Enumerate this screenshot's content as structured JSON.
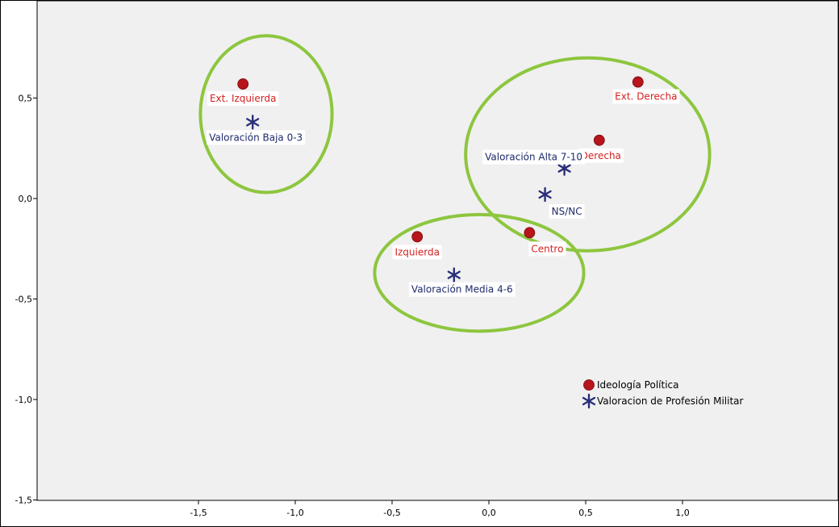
{
  "chart_data": {
    "type": "scatter",
    "title": "",
    "xlabel": "",
    "ylabel": "",
    "xlim": [
      -2.05,
      2.35
    ],
    "ylim": [
      -1.52,
      1.0
    ],
    "grid": false,
    "x_ticks": [
      {
        "value": -1.5,
        "label": "-1,5"
      },
      {
        "value": -1.0,
        "label": "-1,0"
      },
      {
        "value": -0.5,
        "label": "-0,5"
      },
      {
        "value": 0.0,
        "label": "0,0"
      },
      {
        "value": 0.5,
        "label": "0,5"
      },
      {
        "value": 1.0,
        "label": "1,0"
      }
    ],
    "y_ticks": [
      {
        "value": 0.5,
        "label": "0,5"
      },
      {
        "value": 0.0,
        "label": "0,0"
      },
      {
        "value": -0.5,
        "label": "-0,5"
      },
      {
        "value": -1.0,
        "label": "-1,0"
      },
      {
        "value": -1.5,
        "label": "-1,5"
      }
    ],
    "series": [
      {
        "name": "Ideología Política",
        "marker": "circle",
        "color": "#b8141b",
        "label_color": "#d42020",
        "points": [
          {
            "label": "Ext. Izquierda",
            "x": -1.27,
            "y": 0.57
          },
          {
            "label": "Ext. Derecha",
            "x": 0.77,
            "y": 0.58
          },
          {
            "label": "Derecha",
            "x": 0.57,
            "y": 0.29
          },
          {
            "label": "Izquierda",
            "x": -0.37,
            "y": -0.19
          },
          {
            "label": "Centro",
            "x": 0.21,
            "y": -0.17
          }
        ]
      },
      {
        "name": "Valoracion de Profesión Militar",
        "marker": "star",
        "color": "#2a2f7a",
        "label_color": "#1e2a6a",
        "points": [
          {
            "label": "Valoración Baja 0-3",
            "x": -1.22,
            "y": 0.38
          },
          {
            "label": "Valoración Alta 7-10",
            "x": 0.39,
            "y": 0.15
          },
          {
            "label": "NS/NC",
            "x": 0.29,
            "y": 0.02
          },
          {
            "label": "Valoración Media 4-6",
            "x": -0.18,
            "y": -0.38
          }
        ]
      }
    ],
    "annotations": [
      {
        "shape": "ellipse",
        "color": "#8dc63f",
        "center": [
          -1.15,
          0.42
        ],
        "radius": [
          0.34,
          0.39
        ],
        "encloses": [
          "Ext. Izquierda",
          "Valoración Baja 0-3"
        ]
      },
      {
        "shape": "ellipse",
        "color": "#8dc63f",
        "center": [
          0.51,
          0.22
        ],
        "radius": [
          0.63,
          0.48
        ],
        "encloses": [
          "Ext. Derecha",
          "Derecha",
          "Valoración Alta 7-10",
          "NS/NC",
          "Centro"
        ]
      },
      {
        "shape": "ellipse",
        "color": "#8dc63f",
        "center": [
          -0.05,
          -0.37
        ],
        "radius": [
          0.54,
          0.29
        ],
        "encloses": [
          "Izquierda",
          "Valoración Media 4-6"
        ]
      }
    ],
    "legend": {
      "position": "bottom-right",
      "entries": [
        "Ideología Política",
        "Valoracion de Profesión Militar"
      ]
    }
  }
}
